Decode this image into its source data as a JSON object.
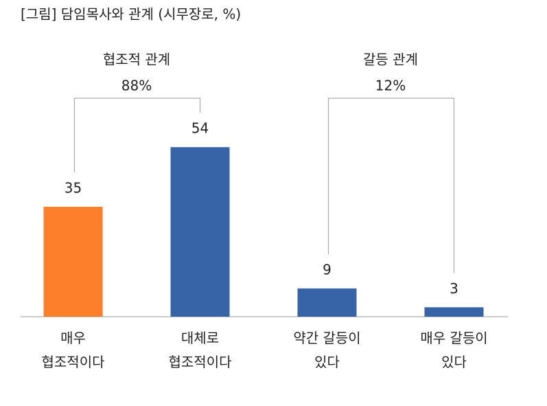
{
  "chart_data": {
    "type": "bar",
    "title": "[그림] 담임목사와 관계 (시무장로, %)",
    "categories": [
      "매우\n협조적이다",
      "대체로\n협조적이다",
      "약간 갈등이\n있다",
      "매우 갈등이\n있다"
    ],
    "values": [
      35,
      54,
      9,
      3
    ],
    "colors": [
      "#fd7f2b",
      "#3764a6",
      "#3764a6",
      "#3764a6"
    ],
    "groups": [
      {
        "name": "협조적 관계",
        "value": 88,
        "value_label": "88%"
      },
      {
        "name": "갈등 관계",
        "value": 12,
        "value_label": "12%"
      }
    ]
  }
}
